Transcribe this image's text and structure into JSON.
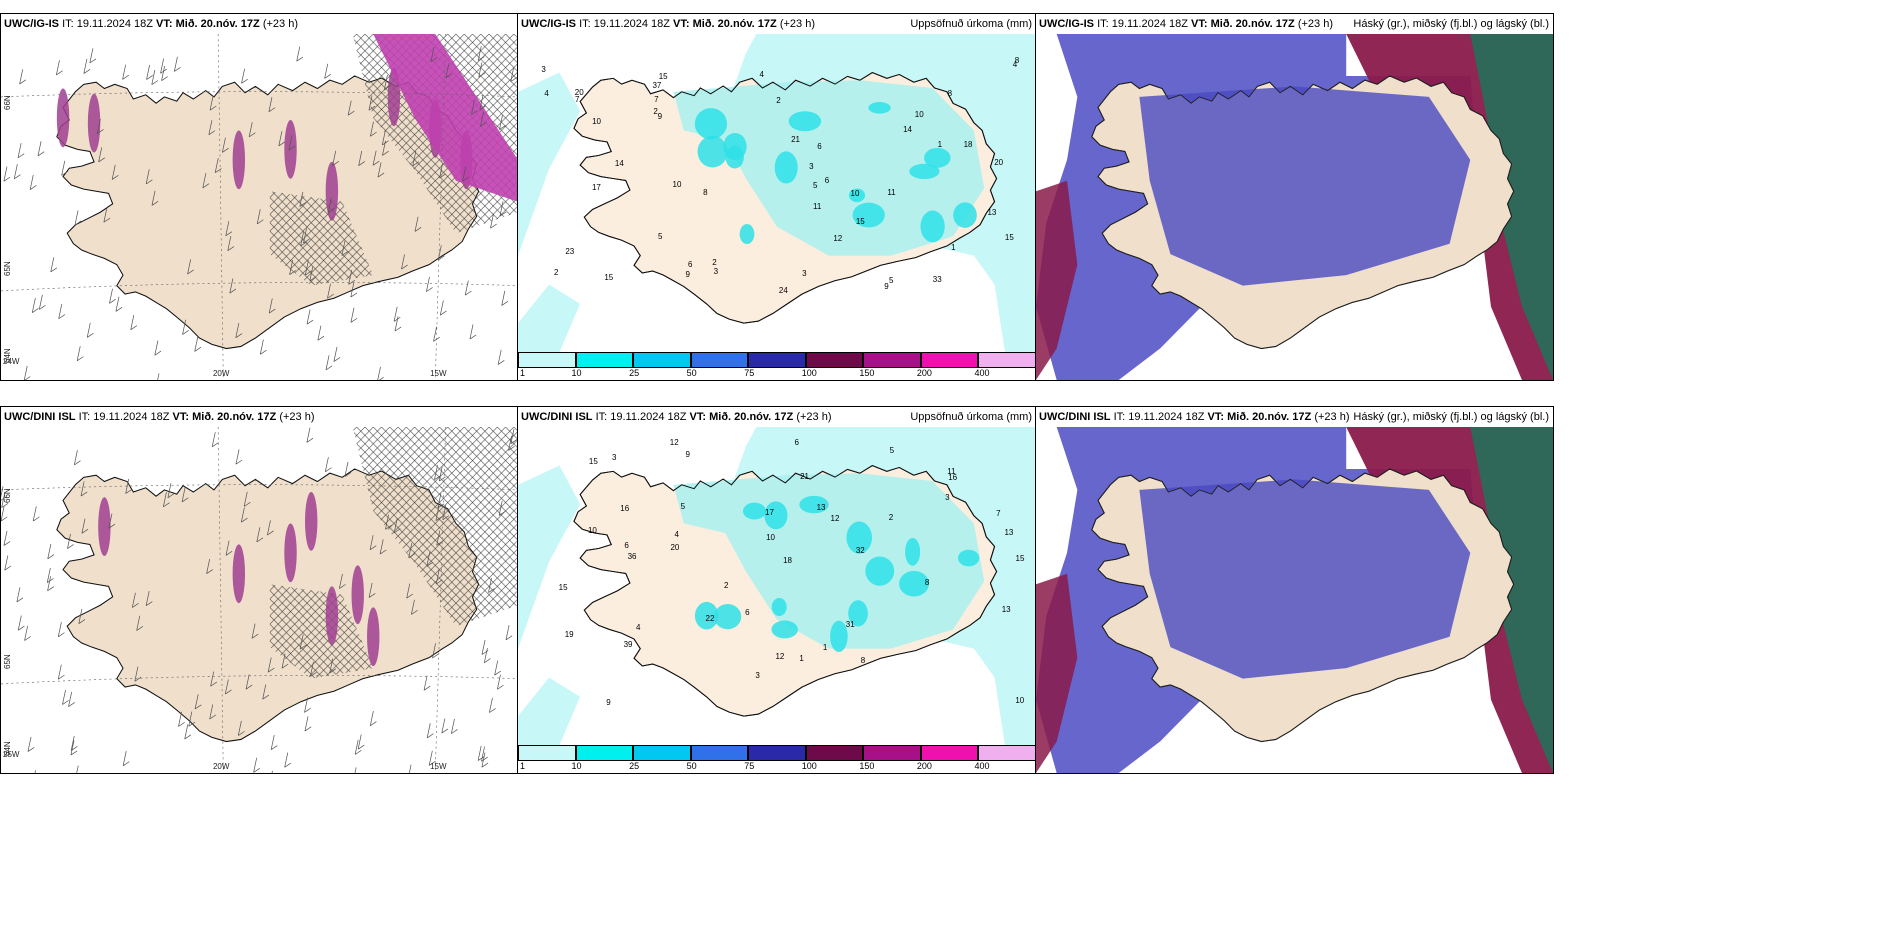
{
  "panels": [
    {
      "id": "p1",
      "model": "UWC/IG-IS",
      "it": "IT: 19.11.2024 18Z",
      "vt": "VT: Mið. 20.nóv. 17Z",
      "lead": "(+23 h)",
      "right": "",
      "kind": "wind"
    },
    {
      "id": "p2",
      "model": "UWC/IG-IS",
      "it": "IT: 19.11.2024 18Z",
      "vt": "VT: Mið. 20.nóv. 17Z",
      "lead": "(+23 h)",
      "right": "Uppsöfnuð úrkoma (mm)",
      "kind": "precip"
    },
    {
      "id": "p3",
      "model": "UWC/IG-IS",
      "it": "IT: 19.11.2024 18Z",
      "vt": "VT: Mið. 20.nóv. 17Z",
      "lead": "(+23 h)",
      "right": "Háský (gr.), miðský (fj.bl.) og lágský (bl.)",
      "kind": "cloud"
    },
    {
      "id": "p4",
      "model": "UWC/DINI ISL",
      "it": "IT: 19.11.2024 18Z",
      "vt": "VT: Mið. 20.nóv. 17Z",
      "lead": "(+23 h)",
      "right": "",
      "kind": "wind"
    },
    {
      "id": "p5",
      "model": "UWC/DINI ISL",
      "it": "IT: 19.11.2024 18Z",
      "vt": "VT: Mið. 20.nóv. 17Z",
      "lead": "(+23 h)",
      "right": "Uppsöfnuð úrkoma (mm)",
      "kind": "precip"
    },
    {
      "id": "p6",
      "model": "UWC/DINI ISL",
      "it": "IT: 19.11.2024 18Z",
      "vt": "VT: Mið. 20.nóv. 17Z",
      "lead": "(+23 h)",
      "right": "Háský (gr.), miðský (fj.bl.) og lágský (bl.)",
      "kind": "cloud"
    }
  ],
  "colorbar": {
    "labels": [
      "1",
      "10",
      "25",
      "50",
      "75",
      "100",
      "150",
      "200",
      "400"
    ],
    "colors": [
      "#c8f7f7",
      "#00f0f0",
      "#00c8f0",
      "#3070e8",
      "#2a2aa8",
      "#6e0a4a",
      "#a8108a",
      "#f010b0",
      "#f0b0f0"
    ]
  },
  "wind_axes": {
    "lon_labels": [
      "20W",
      "15W"
    ],
    "lat_labels_top": [
      "66N",
      "65N",
      "64N"
    ],
    "lat_labels_bottom": [
      "66N",
      "65N",
      "64N"
    ],
    "left_edge_top": "24W",
    "left_edge_bottom": "25W"
  },
  "precip_values_top": [
    "2",
    "3",
    "5",
    "6",
    "4",
    "3",
    "5",
    "10",
    "9",
    "11",
    "15",
    "14",
    "18",
    "15",
    "12",
    "21",
    "23",
    "20",
    "33",
    "37",
    "24",
    "10",
    "8",
    "6",
    "9",
    "7",
    "5",
    "4",
    "11",
    "14",
    "15",
    "10",
    "2",
    "1",
    "8",
    "17",
    "20",
    "15",
    "13",
    "9",
    "3",
    "6",
    "1",
    "2",
    "3",
    "7",
    "4",
    "2",
    "10",
    "8"
  ],
  "precip_values_bottom": [
    "2",
    "3",
    "4",
    "12",
    "10",
    "16",
    "17",
    "11",
    "31",
    "32",
    "15",
    "13",
    "39",
    "10",
    "36",
    "22",
    "19",
    "12",
    "18",
    "21",
    "13",
    "15",
    "8",
    "6",
    "9",
    "16",
    "12",
    "20",
    "13",
    "15",
    "5",
    "6",
    "1",
    "3",
    "4",
    "5",
    "7",
    "9",
    "1",
    "2",
    "6",
    "8",
    "10",
    "3"
  ]
}
